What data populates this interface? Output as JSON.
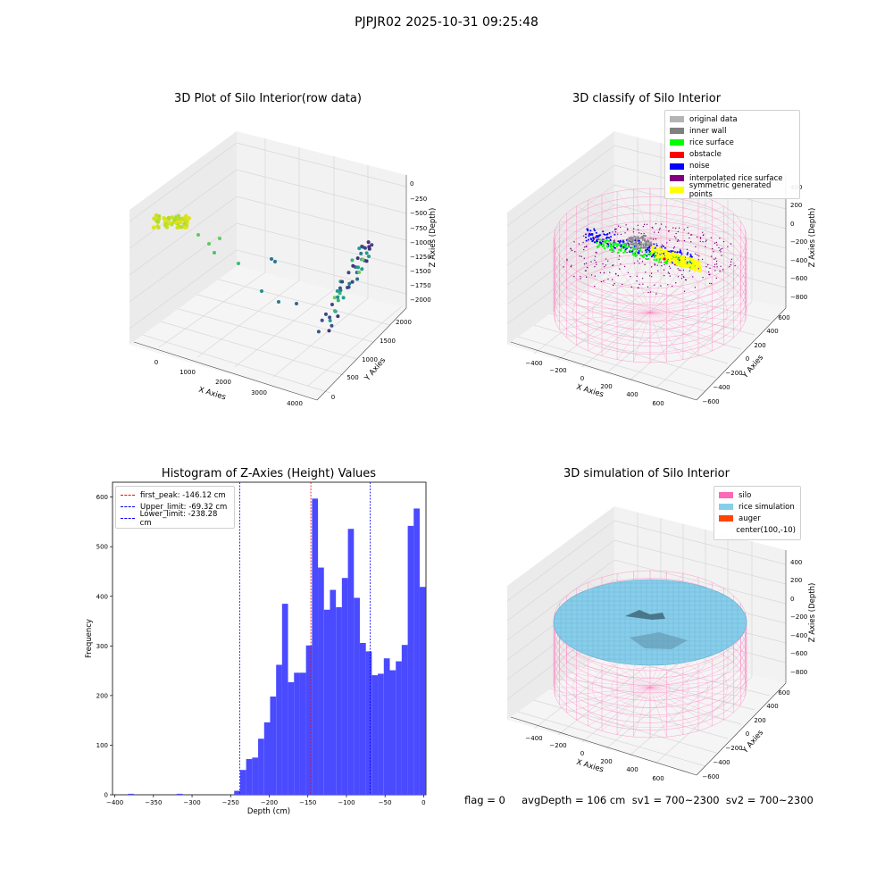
{
  "suptitle": "PJPJR02 2025-10-31 09:25:48",
  "status_text": "flag = 0     avgDepth = 106 cm  sv1 = 700~2300  sv2 = 700~2300",
  "panel1": {
    "title": "3D Plot of Silo Interior(row data)",
    "xlabel": "X Axies",
    "ylabel": "Y Axies",
    "zlabel": "Z Axies (Depth)",
    "xticks": [
      "0",
      "1000",
      "2000",
      "3000",
      "4000"
    ],
    "yticks": [
      "0",
      "500",
      "1000",
      "1500",
      "2000"
    ],
    "zticks": [
      "0",
      "−250",
      "−500",
      "−750",
      "−1000",
      "−1250",
      "−1500",
      "−1750",
      "−2000"
    ]
  },
  "panel2": {
    "title": "3D classify of Silo Interior",
    "xlabel": "X Axies",
    "ylabel": "Y Axies",
    "zlabel": "Z Axies (Depth)",
    "xticks": [
      "−400",
      "−200",
      "0",
      "200",
      "400",
      "600"
    ],
    "yticks": [
      "−600",
      "−400",
      "−200",
      "0",
      "200",
      "400",
      "600"
    ],
    "zticks": [
      "400",
      "200",
      "0",
      "−200",
      "−400",
      "−600",
      "−800"
    ],
    "legend": [
      {
        "label": "original data",
        "color": "#b4b4b4"
      },
      {
        "label": "inner wall",
        "color": "#808080"
      },
      {
        "label": "rice surface",
        "color": "#00ff00"
      },
      {
        "label": "obstacle",
        "color": "#ff0000"
      },
      {
        "label": "noise",
        "color": "#0000ff"
      },
      {
        "label": "interpolated rice surface",
        "color": "#800080"
      },
      {
        "label": "symmetric generated points",
        "color": "#ffff00"
      }
    ]
  },
  "panel3": {
    "legend": [
      {
        "label": "first_peak: -146.12 cm",
        "color": "#ff0000"
      },
      {
        "label": "Upper_limit: -69.32 cm",
        "color": "#0000ff"
      },
      {
        "label": "Lower_limit: -238.28 cm",
        "color": "#0000ff"
      }
    ]
  },
  "panel4": {
    "title": "3D simulation of Silo Interior",
    "xlabel": "X Axies",
    "ylabel": "Y Axies",
    "zlabel": "Z Axies (Depth)",
    "xticks": [
      "−400",
      "−200",
      "0",
      "200",
      "400",
      "600"
    ],
    "yticks": [
      "−600",
      "−400",
      "−200",
      "0",
      "200",
      "400",
      "600"
    ],
    "zticks": [
      "400",
      "200",
      "0",
      "−200",
      "−400",
      "−600",
      "−800"
    ],
    "legend": [
      {
        "label": "silo",
        "color": "#ff69b4"
      },
      {
        "label": "rice simulation",
        "color": "#87ceeb"
      },
      {
        "label": "auger",
        "color": "#ff4500"
      },
      {
        "label": "center(100,-10)",
        "color": "#ffffff"
      }
    ]
  },
  "chart_data": [
    {
      "type": "scatter",
      "title": "3D Plot of Silo Interior(row data)",
      "xlabel": "X Axies",
      "ylabel": "Y Axies",
      "zlabel": "Z Axies (Depth)",
      "xlim": [
        -500,
        4500
      ],
      "ylim": [
        0,
        2200
      ],
      "zlim": [
        -2100,
        100
      ]
    },
    {
      "type": "scatter",
      "title": "3D classify of Silo Interior",
      "xlabel": "X Axies",
      "ylabel": "Y Axies",
      "zlabel": "Z Axies (Depth)",
      "xlim": [
        -500,
        700
      ],
      "ylim": [
        -650,
        650
      ],
      "zlim": [
        -900,
        400
      ]
    },
    {
      "type": "bar",
      "title": "Histogram of Z-Axies (Height) Values",
      "xlabel": "Depth (cm)",
      "ylabel": "Frequency",
      "xlim": [
        -403,
        3
      ],
      "ylim": [
        0,
        630
      ],
      "xticks": [
        -400,
        -350,
        -300,
        -250,
        -200,
        -150,
        -100,
        -50,
        0
      ],
      "yticks": [
        0,
        100,
        200,
        300,
        400,
        500,
        600
      ],
      "bin_width": 7.75,
      "bins": [
        {
          "x0": -383.0,
          "count": 2
        },
        {
          "x0": -320.0,
          "count": 2
        },
        {
          "x0": -245.4,
          "count": 8
        },
        {
          "x0": -237.6,
          "count": 50
        },
        {
          "x0": -229.9,
          "count": 72
        },
        {
          "x0": -222.1,
          "count": 75
        },
        {
          "x0": -214.4,
          "count": 113
        },
        {
          "x0": -206.6,
          "count": 146
        },
        {
          "x0": -198.9,
          "count": 198
        },
        {
          "x0": -191.1,
          "count": 262
        },
        {
          "x0": -183.4,
          "count": 385
        },
        {
          "x0": -175.6,
          "count": 227
        },
        {
          "x0": -167.9,
          "count": 246
        },
        {
          "x0": -160.1,
          "count": 246
        },
        {
          "x0": -152.4,
          "count": 301
        },
        {
          "x0": -144.6,
          "count": 597
        },
        {
          "x0": -136.9,
          "count": 458
        },
        {
          "x0": -129.1,
          "count": 373
        },
        {
          "x0": -121.4,
          "count": 413
        },
        {
          "x0": -113.6,
          "count": 378
        },
        {
          "x0": -105.9,
          "count": 437
        },
        {
          "x0": -98.1,
          "count": 536
        },
        {
          "x0": -90.4,
          "count": 397
        },
        {
          "x0": -82.6,
          "count": 306
        },
        {
          "x0": -74.9,
          "count": 289
        },
        {
          "x0": -67.1,
          "count": 241
        },
        {
          "x0": -59.4,
          "count": 244
        },
        {
          "x0": -51.6,
          "count": 275
        },
        {
          "x0": -43.9,
          "count": 251
        },
        {
          "x0": -36.1,
          "count": 269
        },
        {
          "x0": -28.4,
          "count": 302
        },
        {
          "x0": -20.6,
          "count": 542
        },
        {
          "x0": -12.9,
          "count": 577
        },
        {
          "x0": -5.1,
          "count": 419
        }
      ],
      "vlines": [
        {
          "label": "first_peak: -146.12 cm",
          "x": -146.12,
          "color": "#ff0000"
        },
        {
          "label": "Upper_limit: -69.32 cm",
          "x": -69.32,
          "color": "#0000ff"
        },
        {
          "label": "Lower_limit: -238.28 cm",
          "x": -238.28,
          "color": "#0000ff"
        }
      ],
      "legend_position": "upper-left",
      "bar_color": "#4a4aff"
    },
    {
      "type": "area",
      "title": "3D simulation of Silo Interior",
      "xlabel": "X Axies",
      "ylabel": "Y Axies",
      "zlabel": "Z Axies (Depth)",
      "xlim": [
        -500,
        700
      ],
      "ylim": [
        -650,
        650
      ],
      "zlim": [
        -900,
        400
      ]
    }
  ]
}
